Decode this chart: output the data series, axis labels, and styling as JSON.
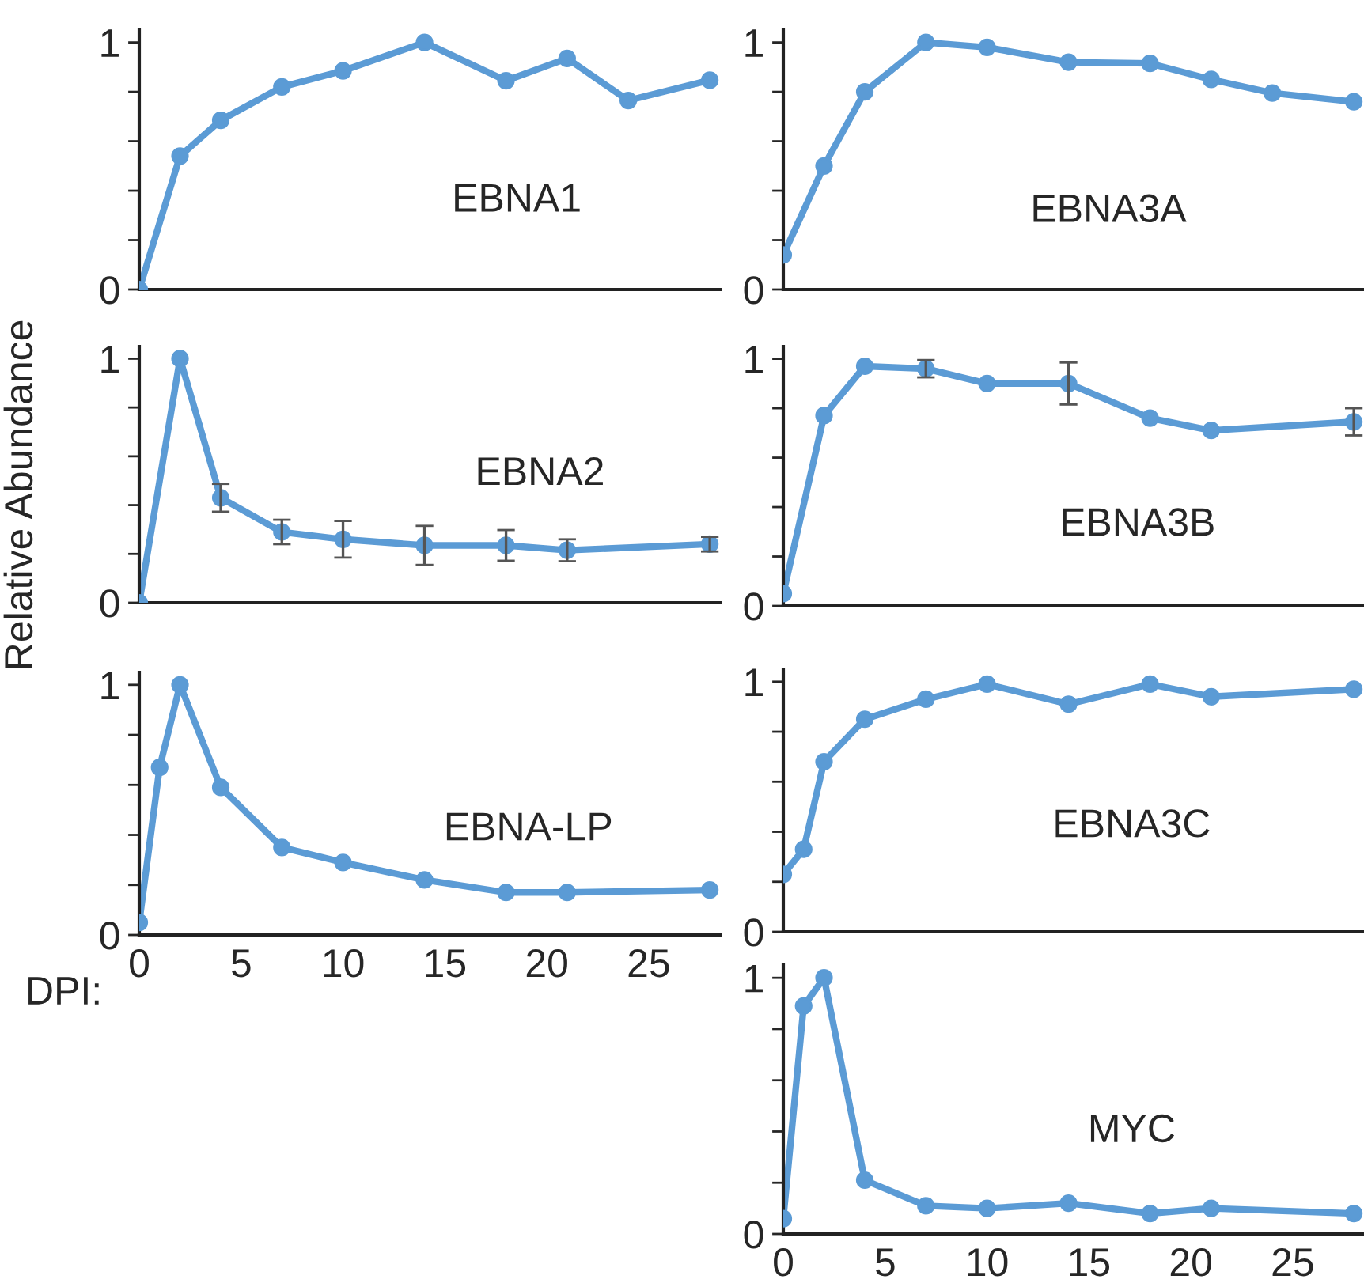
{
  "chart_data": [
    {
      "type": "line",
      "annotations": [
        "EBNA1"
      ],
      "x": [
        0,
        2,
        4,
        7,
        10,
        14,
        18,
        21,
        24,
        28
      ],
      "series": [
        {
          "color": "#5b9bd5",
          "values": [
            0,
            0.54,
            0.685,
            0.82,
            0.885,
            1.0,
            0.845,
            0.935,
            0.765,
            0.847
          ]
        }
      ],
      "xlim": [
        0,
        28.5
      ],
      "ylim": [
        0,
        1.05
      ],
      "yticks": [
        0,
        {
          "value": 0.2,
          "label": null
        },
        {
          "value": 0.4,
          "label": null
        },
        {
          "value": 0.6,
          "label": null
        },
        {
          "value": 0.8,
          "label": null
        },
        1
      ],
      "tick_labels": "y",
      "marker": "circle",
      "grid": false,
      "legend": false
    },
    {
      "type": "line",
      "annotations": [
        "EBNA3A"
      ],
      "x": [
        0,
        2,
        4,
        7,
        10,
        14,
        18,
        21,
        24,
        28
      ],
      "series": [
        {
          "color": "#5b9bd5",
          "values": [
            0.14,
            0.5,
            0.8,
            1.0,
            0.98,
            0.92,
            0.915,
            0.85,
            0.795,
            0.76
          ]
        }
      ],
      "xlim": [
        0,
        28.5
      ],
      "ylim": [
        0,
        1.05
      ],
      "yticks": [
        0,
        {
          "value": 0.2,
          "label": null
        },
        {
          "value": 0.4,
          "label": null
        },
        {
          "value": 0.6,
          "label": null
        },
        {
          "value": 0.8,
          "label": null
        },
        1
      ],
      "tick_labels": "y",
      "marker": "circle",
      "grid": false,
      "legend": false
    },
    {
      "type": "line",
      "ylabel": "Relative Abundance",
      "annotations": [
        "EBNA2"
      ],
      "x": [
        0,
        2,
        4,
        7,
        10,
        14,
        18,
        21,
        28
      ],
      "series": [
        {
          "color": "#5b9bd5",
          "values": [
            0,
            1.0,
            0.43,
            0.29,
            0.26,
            0.235,
            0.235,
            0.215,
            0.24
          ],
          "errors": [
            null,
            null,
            0.057,
            0.05,
            0.075,
            0.08,
            0.063,
            0.045,
            0.03
          ]
        }
      ],
      "xlim": [
        0,
        28.5
      ],
      "ylim": [
        0,
        1.05
      ],
      "yticks": [
        0,
        {
          "value": 0.2,
          "label": null
        },
        {
          "value": 0.4,
          "label": null
        },
        {
          "value": 0.6,
          "label": null
        },
        {
          "value": 0.8,
          "label": null
        },
        1
      ],
      "tick_labels": "y",
      "marker": "circle",
      "grid": false,
      "legend": false
    },
    {
      "type": "line",
      "annotations": [
        "EBNA3B"
      ],
      "x": [
        0,
        2,
        4,
        7,
        10,
        14,
        18,
        21,
        28
      ],
      "series": [
        {
          "color": "#5b9bd5",
          "values": [
            0.05,
            0.77,
            0.97,
            0.96,
            0.9,
            0.9,
            0.76,
            0.71,
            0.745
          ],
          "errors": [
            null,
            null,
            null,
            0.035,
            null,
            0.085,
            null,
            null,
            0.055
          ]
        }
      ],
      "xlim": [
        0,
        28.5
      ],
      "ylim": [
        0,
        1.05
      ],
      "yticks": [
        0,
        {
          "value": 0.2,
          "label": null
        },
        {
          "value": 0.4,
          "label": null
        },
        {
          "value": 0.6,
          "label": null
        },
        {
          "value": 0.8,
          "label": null
        },
        1
      ],
      "tick_labels": "y",
      "marker": "circle",
      "grid": false,
      "legend": false
    },
    {
      "type": "line",
      "xlabel": "DPI:",
      "annotations": [
        "EBNA-LP"
      ],
      "x": [
        0,
        1,
        2,
        4,
        7,
        10,
        14,
        18,
        21,
        28
      ],
      "series": [
        {
          "color": "#5b9bd5",
          "values": [
            0.05,
            0.67,
            1.0,
            0.59,
            0.35,
            0.29,
            0.22,
            0.17,
            0.17,
            0.18
          ]
        }
      ],
      "xlim": [
        0,
        28.5
      ],
      "xticks": [
        0,
        5,
        10,
        15,
        20,
        25
      ],
      "ylim": [
        0,
        1.05
      ],
      "yticks": [
        0,
        {
          "value": 0.2,
          "label": null
        },
        {
          "value": 0.4,
          "label": null
        },
        {
          "value": 0.6,
          "label": null
        },
        {
          "value": 0.8,
          "label": null
        },
        1
      ],
      "marker": "circle",
      "grid": false,
      "legend": false
    },
    {
      "type": "line",
      "annotations": [
        "EBNA3C"
      ],
      "x": [
        0,
        1,
        2,
        4,
        7,
        10,
        14,
        18,
        21,
        28
      ],
      "series": [
        {
          "color": "#5b9bd5",
          "values": [
            0.23,
            0.33,
            0.68,
            0.85,
            0.93,
            0.99,
            0.91,
            0.99,
            0.94,
            0.97
          ]
        }
      ],
      "xlim": [
        0,
        28.5
      ],
      "ylim": [
        0,
        1.05
      ],
      "yticks": [
        0,
        {
          "value": 0.2,
          "label": null
        },
        {
          "value": 0.4,
          "label": null
        },
        {
          "value": 0.6,
          "label": null
        },
        {
          "value": 0.8,
          "label": null
        },
        1
      ],
      "tick_labels": "y",
      "marker": "circle",
      "grid": false,
      "legend": false
    },
    {
      "type": "line",
      "annotations": [
        "MYC"
      ],
      "x": [
        0,
        1,
        2,
        4,
        7,
        10,
        14,
        18,
        21,
        28
      ],
      "series": [
        {
          "color": "#5b9bd5",
          "values": [
            0.06,
            0.89,
            1.0,
            0.21,
            0.11,
            0.1,
            0.12,
            0.08,
            0.1,
            0.08
          ]
        }
      ],
      "xlim": [
        0,
        28.5
      ],
      "xticks": [
        0,
        5,
        10,
        15,
        20,
        25
      ],
      "ylim": [
        0,
        1.05
      ],
      "yticks": [
        0,
        {
          "value": 0.2,
          "label": null
        },
        {
          "value": 0.4,
          "label": null
        },
        {
          "value": 0.6,
          "label": null
        },
        {
          "value": 0.8,
          "label": null
        },
        1
      ],
      "marker": "circle",
      "grid": false,
      "legend": false
    }
  ]
}
